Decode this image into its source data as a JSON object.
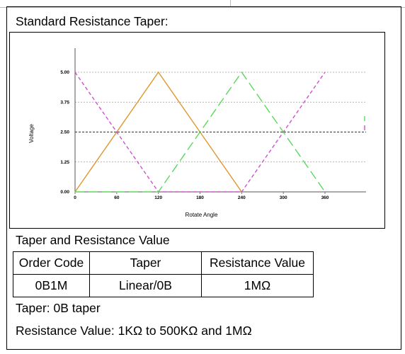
{
  "sections": {
    "taper_title": "Standard Resistance Taper:",
    "table_title": "Taper and Resistance Value"
  },
  "table": {
    "headers": [
      "Order Code",
      "Taper",
      "Resistance Value"
    ],
    "rows": [
      [
        "0B1M",
        "Linear/0B",
        "1MΩ"
      ]
    ]
  },
  "notes": {
    "taper": "Taper: 0B taper",
    "resistance": "Resistance Value: 1KΩ to 500KΩ and 1MΩ"
  },
  "chart_data": {
    "type": "line",
    "xlabel": "Rotate Angle",
    "ylabel": "Voltage",
    "xlim": [
      0,
      360
    ],
    "ylim": [
      0,
      5
    ],
    "x_ticks": [
      0,
      60,
      120,
      180,
      240,
      300,
      360
    ],
    "y_ticks": [
      "0.00",
      "1.25",
      "2.50",
      "3.75",
      "5.00"
    ],
    "y_tick_values": [
      0,
      1.25,
      2.5,
      3.75,
      5
    ],
    "grid": "horizontal-dashed",
    "series": [
      {
        "color": "#e0962e",
        "style": "solid",
        "x": [
          0,
          120,
          240
        ],
        "y": [
          0,
          5,
          0
        ]
      },
      {
        "color": "#d04fd0",
        "style": "dashed",
        "x": [
          0,
          120,
          240,
          360
        ],
        "y": [
          5,
          0,
          0,
          5
        ]
      },
      {
        "color": "#5bd85b",
        "style": "long-dash",
        "x": [
          0,
          120,
          240,
          360
        ],
        "y": [
          0,
          0,
          5,
          0
        ]
      }
    ]
  }
}
